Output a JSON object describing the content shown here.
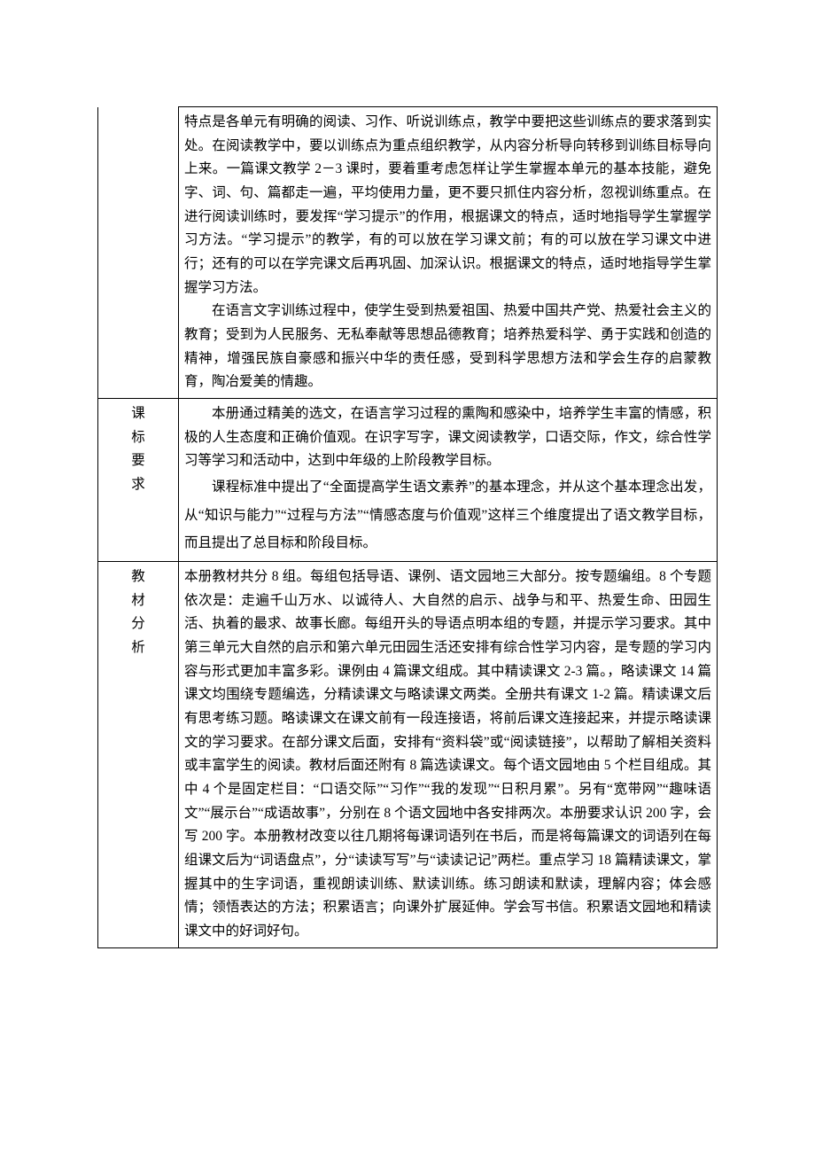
{
  "rows": [
    {
      "label": "",
      "paragraphs": [
        {
          "indent": false,
          "text": "特点是各单元有明确的阅读、习作、听说训练点，教学中要把这些训练点的要求落到实处。在阅读教学中，要以训练点为重点组织教学，从内容分析导向转移到训练目标导向上来。一篇课文教学 2－3 课时，要着重考虑怎样让学生掌握本单元的基本技能，避免字、词、句、篇都走一遍，平均使用力量，更不要只抓住内容分析，忽视训练重点。在进行阅读训练时，要发挥“学习提示”的作用，根据课文的特点，适时地指导学生掌握学习方法。“学习提示”的教学，有的可以放在学习课文前；有的可以放在学习课文中进行；还有的可以在学完课文后再巩固、加深认识。根据课文的特点，适时地指导学生掌握学习方法。"
        },
        {
          "indent": true,
          "text": "在语言文字训练过程中，使学生受到热爱祖国、热爱中国共产党、热爱社会主义的教育；受到为人民服务、无私奉献等思想品德教育；培养热爱科学、勇于实践和创造的精神，增强民族自豪感和振兴中华的责任感，受到科学思想方法和学会生存的启蒙教育，陶冶爱美的情趣。"
        }
      ]
    },
    {
      "label": "课标要求",
      "paragraphs": [
        {
          "indent": true,
          "text": "本册通过精美的选文，在语言学习过程的熏陶和感染中，培养学生丰富的情感，积极的人生态度和正确价值观。在识字写字，课文阅读教学，口语交际，作文，综合性学习等学习和活动中，达到中年级的上阶段教学目标。"
        },
        {
          "indent": true,
          "text": "课程标准中提出了“全面提高学生语文素养”的基本理念，并从这个基本理念出发，从“知识与能力”“过程与方法”“情感态度与价值观”这样三个维度提出了语文教学目标，而且提出了总目标和阶段目标。"
        }
      ]
    },
    {
      "label": "教材分析",
      "paragraphs": [
        {
          "indent": false,
          "text": "本册教材共分 8 组。每组包括导语、课例、语文园地三大部分。按专题编组。8 个专题依次是：走遍千山万水、以诚待人、大自然的启示、战争与和平、热爱生命、田园生活、执着的最求、故事长廊。每组开头的导语点明本组的专题，并提示学习要求。其中第三单元大自然的启示和第六单元田园生活还安排有综合性学习内容，是专题的学习内容与形式更加丰富多彩。课例由 4 篇课文组成。其中精读课文 2-3 篇。，略读课文 14 篇课文均围绕专题编选，分精读课文与略读课文两类。全册共有课文 1-2 篇。精读课文后有思考练习题。略读课文在课文前有一段连接语，将前后课文连接起来，并提示略读课文的学习要求。在部分课文后面，安排有“资料袋”或“阅读链接”，以帮助了解相关资料或丰富学生的阅读。教材后面还附有 8 篇选读课文。每个语文园地由 5 个栏目组成。其中 4 个是固定栏目：“口语交际”“习作”“我的发现”“日积月累”。另有“宽带网”“趣味语文”“展示台”“成语故事”，分别在 8 个语文园地中各安排两次。本册要求认识 200 字，会写 200 字。本册教材改变以往几期将每课词语列在书后，而是将每篇课文的词语列在每组课文后为“词语盘点”，分“读读写写”与“读读记记”两栏。重点学习 18 篇精读课文，掌握其中的生字词语，重视朗读训练、默读训练。练习朗读和默读，理解内容；体会感情；领悟表达的方法；积累语言；向课外扩展延伸。学会写书信。积累语文园地和精读课文中的好词好句。"
        }
      ]
    }
  ]
}
